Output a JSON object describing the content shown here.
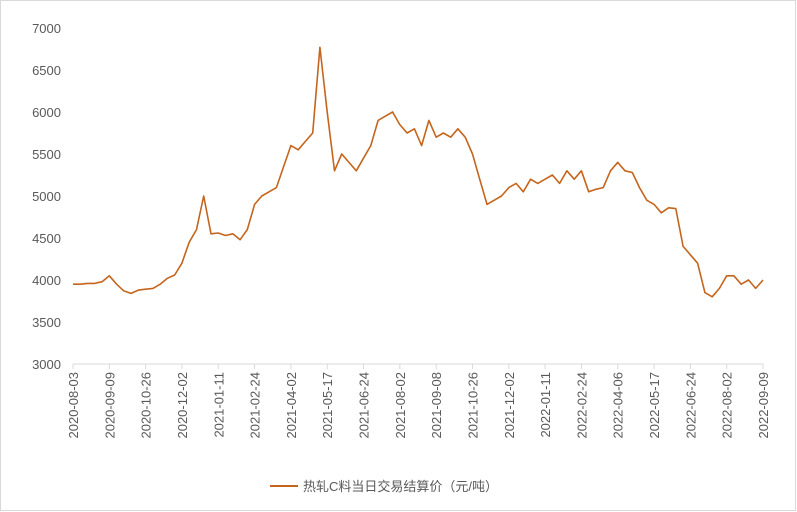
{
  "chart_data": {
    "type": "line",
    "x": [
      "2020-08-03",
      "2020-08-10",
      "2020-08-17",
      "2020-08-24",
      "2020-08-31",
      "2020-09-09",
      "2020-09-16",
      "2020-09-23",
      "2020-10-09",
      "2020-10-16",
      "2020-10-26",
      "2020-11-02",
      "2020-11-09",
      "2020-11-16",
      "2020-11-24",
      "2020-12-02",
      "2020-12-09",
      "2020-12-16",
      "2020-12-23",
      "2020-12-30",
      "2021-01-11",
      "2021-01-20",
      "2021-01-28",
      "2021-02-05",
      "2021-02-18",
      "2021-02-24",
      "2021-03-03",
      "2021-03-10",
      "2021-03-17",
      "2021-03-25",
      "2021-04-02",
      "2021-04-13",
      "2021-04-21",
      "2021-04-29",
      "2021-05-11",
      "2021-05-17",
      "2021-05-24",
      "2021-05-31",
      "2021-06-07",
      "2021-06-16",
      "2021-06-24",
      "2021-07-01",
      "2021-07-08",
      "2021-07-16",
      "2021-07-23",
      "2021-08-02",
      "2021-08-09",
      "2021-08-16",
      "2021-08-23",
      "2021-08-31",
      "2021-09-08",
      "2021-09-15",
      "2021-09-24",
      "2021-10-12",
      "2021-10-19",
      "2021-10-26",
      "2021-11-02",
      "2021-11-09",
      "2021-11-16",
      "2021-11-24",
      "2021-12-02",
      "2021-12-09",
      "2021-12-16",
      "2021-12-23",
      "2021-12-31",
      "2022-01-11",
      "2022-01-18",
      "2022-01-25",
      "2022-02-08",
      "2022-02-16",
      "2022-02-24",
      "2022-03-03",
      "2022-03-10",
      "2022-03-18",
      "2022-03-28",
      "2022-04-06",
      "2022-04-14",
      "2022-04-22",
      "2022-04-29",
      "2022-05-10",
      "2022-05-17",
      "2022-05-24",
      "2022-05-31",
      "2022-06-09",
      "2022-06-16",
      "2022-06-24",
      "2022-07-01",
      "2022-07-08",
      "2022-07-15",
      "2022-07-25",
      "2022-08-02",
      "2022-08-09",
      "2022-08-16",
      "2022-08-23",
      "2022-08-31",
      "2022-09-09"
    ],
    "series": [
      {
        "name": "热轧C料当日交易结算价（元/吨）",
        "color": "#c5651d",
        "values": [
          3950,
          3950,
          3960,
          3960,
          3980,
          4050,
          3950,
          3870,
          3840,
          3880,
          3890,
          3900,
          3950,
          4020,
          4060,
          4200,
          4450,
          4600,
          5000,
          4550,
          4560,
          4530,
          4550,
          4480,
          4600,
          4900,
          5000,
          5050,
          5100,
          5350,
          5600,
          5550,
          5650,
          5750,
          6770,
          6000,
          5300,
          5500,
          5400,
          5300,
          5450,
          5600,
          5900,
          5950,
          6000,
          5850,
          5750,
          5800,
          5600,
          5900,
          5700,
          5750,
          5700,
          5800,
          5700,
          5500,
          5200,
          4900,
          4950,
          5000,
          5100,
          5150,
          5050,
          5200,
          5150,
          5200,
          5250,
          5150,
          5300,
          5200,
          5300,
          5050,
          5080,
          5100,
          5300,
          5400,
          5300,
          5280,
          5100,
          4950,
          4900,
          4800,
          4860,
          4850,
          4400,
          4300,
          4200,
          3850,
          3800,
          3900,
          4050,
          4050,
          3950,
          4000,
          3900,
          4000
        ]
      }
    ],
    "xticks": [
      "2020-08-03",
      "2020-09-09",
      "2020-10-26",
      "2020-12-02",
      "2021-01-11",
      "2021-02-24",
      "2021-04-02",
      "2021-05-17",
      "2021-06-24",
      "2021-08-02",
      "2021-09-08",
      "2021-10-26",
      "2021-12-02",
      "2022-01-11",
      "2022-02-24",
      "2022-04-06",
      "2022-05-17",
      "2022-06-24",
      "2022-08-02",
      "2022-09-09"
    ],
    "ylim": [
      3000,
      7000
    ],
    "yticks": [
      3000,
      3500,
      4000,
      4500,
      5000,
      5500,
      6000,
      6500,
      7000
    ],
    "grid": false,
    "legend": "bottom"
  }
}
